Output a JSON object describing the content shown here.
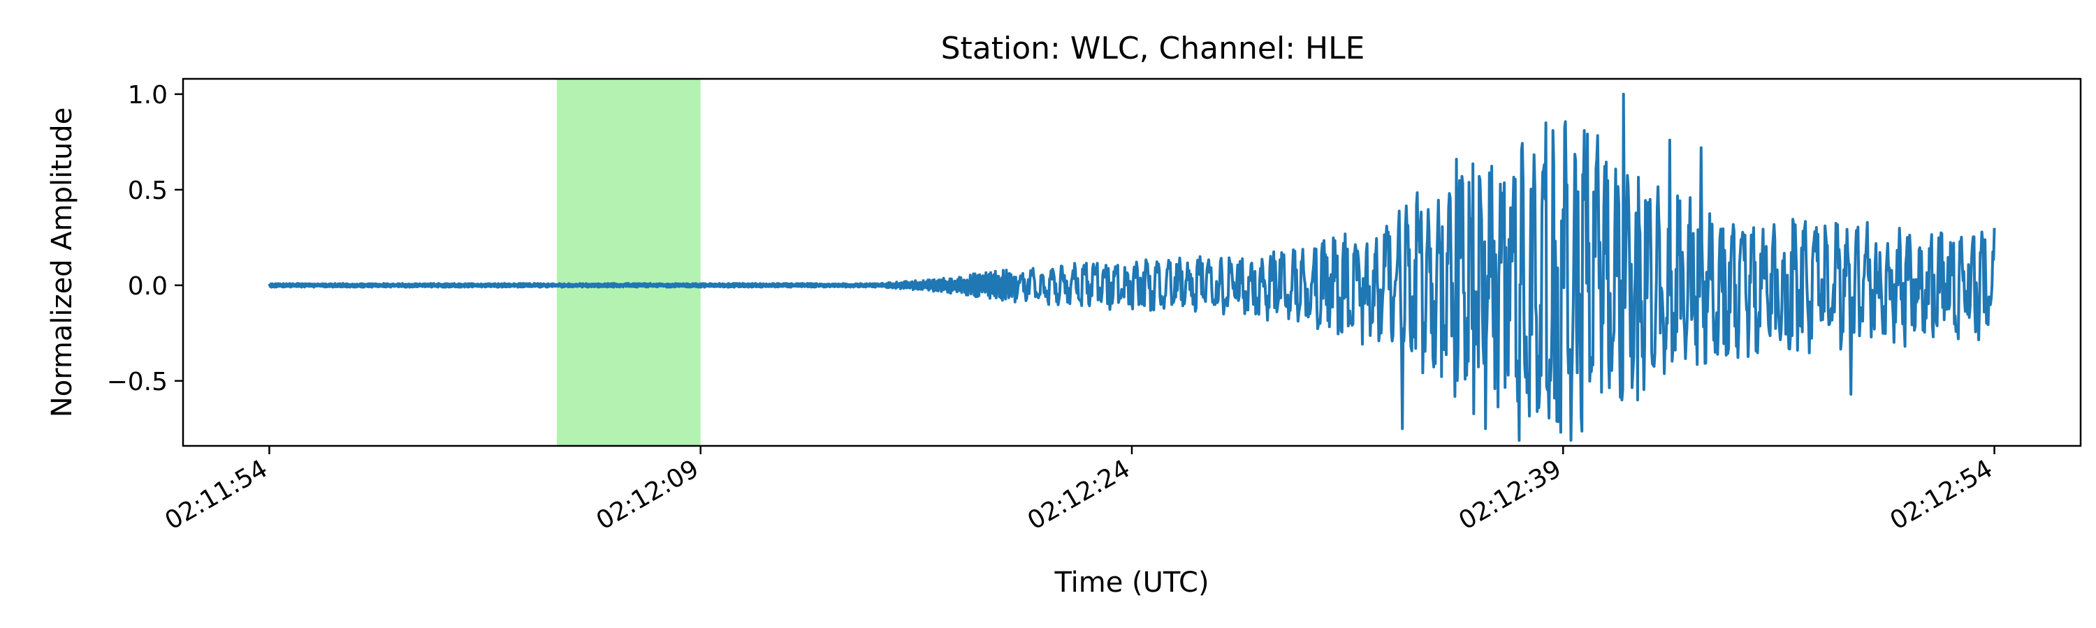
{
  "chart_data": {
    "type": "line",
    "title": "Station: WLC, Channel: HLE",
    "xlabel": "Time (UTC)",
    "ylabel": "Normalized Amplitude",
    "x_start": "02:11:54",
    "x_end": "02:12:54",
    "xlim": [
      "02:11:51",
      "02:12:57"
    ],
    "ylim": [
      -0.84,
      1.08
    ],
    "xticks": [
      "02:11:54",
      "02:12:09",
      "02:12:24",
      "02:12:39",
      "02:12:54"
    ],
    "yticks": [
      -0.5,
      0.0,
      0.5,
      1.0
    ],
    "ytick_labels": [
      "−0.5",
      "0.0",
      "0.5",
      "1.0"
    ],
    "highlight_span": {
      "start": "02:12:04",
      "end": "02:12:09",
      "color": "#b3f2b1"
    },
    "line_color": "#1f77b4",
    "grid": false,
    "series": [
      {
        "x_seconds_after_start": [
          0,
          1,
          2,
          3,
          4,
          5,
          6,
          7,
          8,
          9,
          10,
          11,
          12,
          13,
          14,
          15,
          16,
          17,
          18,
          19,
          20,
          21,
          22,
          23,
          24,
          25,
          26,
          27,
          28,
          29,
          30,
          31,
          32,
          33,
          34,
          35,
          36,
          37,
          38,
          39,
          40,
          41,
          42,
          43,
          44,
          45,
          46,
          47,
          48,
          49,
          50,
          51,
          52,
          53,
          54,
          55,
          56,
          57,
          58,
          59,
          60
        ],
        "envelope": [
          0.01,
          0.01,
          0.01,
          0.01,
          0.01,
          0.01,
          0.01,
          0.01,
          0.01,
          0.01,
          0.01,
          0.01,
          0.01,
          0.01,
          0.01,
          0.01,
          0.01,
          0.01,
          0.01,
          0.01,
          0.01,
          0.01,
          0.02,
          0.03,
          0.05,
          0.07,
          0.09,
          0.1,
          0.12,
          0.13,
          0.14,
          0.15,
          0.15,
          0.16,
          0.17,
          0.19,
          0.22,
          0.26,
          0.32,
          0.42,
          0.55,
          0.65,
          0.72,
          0.8,
          0.85,
          0.9,
          0.85,
          0.65,
          0.55,
          0.5,
          0.45,
          0.42,
          0.4,
          0.38,
          0.36,
          0.35,
          0.34,
          0.33,
          0.32,
          0.3,
          0.3
        ],
        "annotated_peaks": [
          {
            "t": 39.4,
            "value": -0.75
          },
          {
            "t": 41.3,
            "value": 0.66
          },
          {
            "t": 42.3,
            "value": -0.75
          },
          {
            "t": 44.4,
            "value": 0.85
          },
          {
            "t": 44.1,
            "value": -0.66
          },
          {
            "t": 44.7,
            "value": -0.59
          },
          {
            "t": 47.1,
            "value": 1.0
          },
          {
            "t": 47.6,
            "value": -0.6
          },
          {
            "t": 48.7,
            "value": 0.76
          },
          {
            "t": 49.8,
            "value": 0.72
          },
          {
            "t": 55.0,
            "value": -0.57
          },
          {
            "t": 60.0,
            "value": 0.3
          }
        ]
      }
    ]
  }
}
